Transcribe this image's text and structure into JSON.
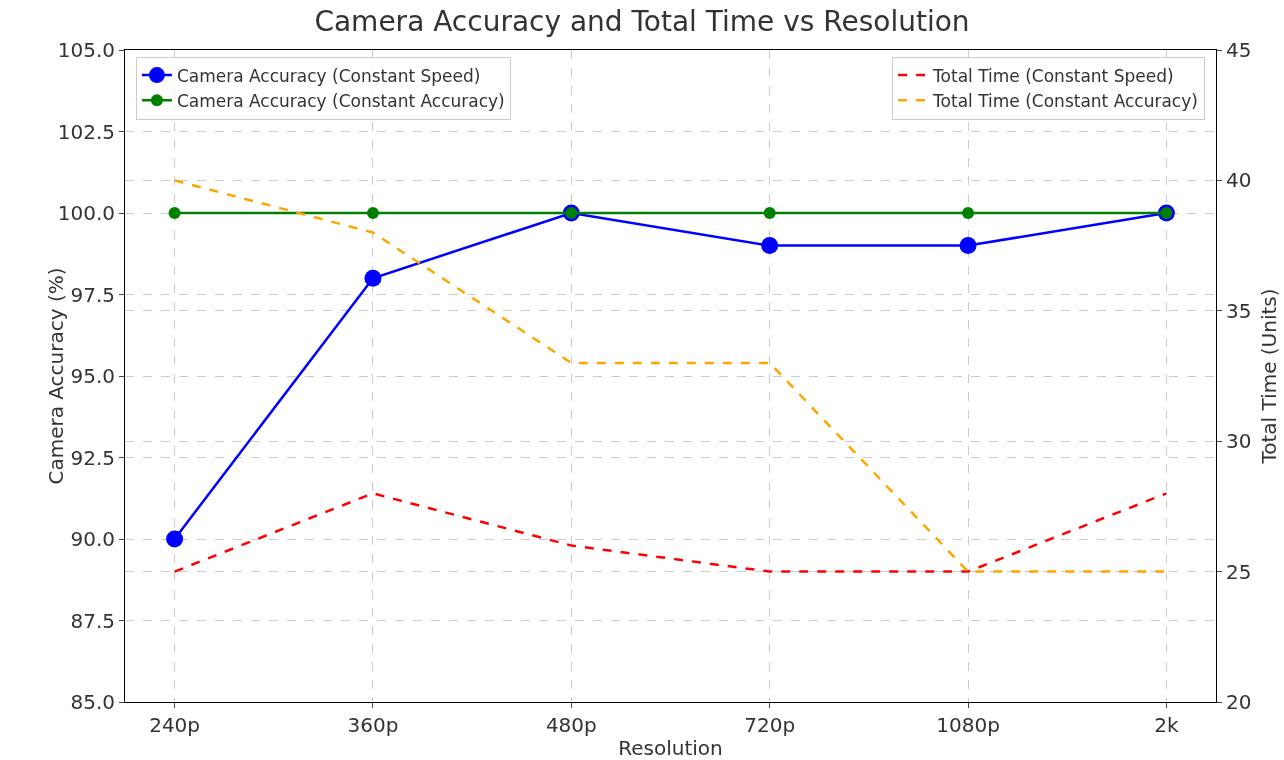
{
  "chart_data": {
    "type": "line",
    "title": "Camera Accuracy and Total Time vs Resolution",
    "xlabel": "Resolution",
    "ylabel": "Camera Accuracy (%)",
    "y2label": "Total Time (Units)",
    "categories": [
      "240p",
      "360p",
      "480p",
      "720p",
      "1080p",
      "2k"
    ],
    "series": [
      {
        "name": "Camera Accuracy (Constant Speed)",
        "color": "#0000ff",
        "values": [
          90,
          98,
          100,
          99,
          99,
          100
        ],
        "marker": "circle",
        "line_style": "solid"
      },
      {
        "name": "Camera Accuracy (Constant Accuracy)",
        "color": "#008000",
        "values": [
          100,
          100,
          100,
          100,
          100,
          100
        ],
        "marker": "circle",
        "line_style": "solid"
      },
      {
        "name": "Total Time (Constant Speed)",
        "color": "#ff0000",
        "values": [
          25,
          28,
          26,
          25,
          25,
          28
        ],
        "axis": "y2",
        "marker": "none",
        "line_style": "dashed"
      },
      {
        "name": "Total Time (Constant Accuracy)",
        "color": "#ffa500",
        "values": [
          40,
          38,
          33,
          33,
          25,
          25
        ],
        "axis": "y2",
        "marker": "none",
        "line_style": "dashed"
      }
    ],
    "ylim": [
      85,
      105
    ],
    "yticks": [
      {
        "value": 85,
        "label": "85.0"
      },
      {
        "value": 87.5,
        "label": "87.5"
      },
      {
        "value": 90,
        "label": "90.0"
      },
      {
        "value": 92.5,
        "label": "92.5"
      },
      {
        "value": 95,
        "label": "95.0"
      },
      {
        "value": 97.5,
        "label": "97.5"
      },
      {
        "value": 100,
        "label": "100.0"
      },
      {
        "value": 102.5,
        "label": "102.5"
      },
      {
        "value": 105,
        "label": "105.0"
      }
    ],
    "y2lim": [
      20,
      45
    ],
    "y2ticks": [
      20,
      25,
      30,
      35,
      40,
      45
    ],
    "grid": true,
    "legend": "top"
  }
}
